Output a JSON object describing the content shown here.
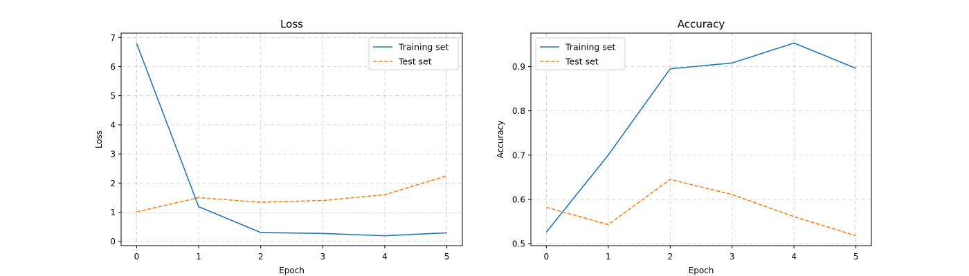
{
  "chart_data": [
    {
      "type": "line",
      "title": "Loss",
      "xlabel": "Epoch",
      "ylabel": "Loss",
      "x": [
        0,
        1,
        2,
        3,
        4,
        5
      ],
      "xlim": [
        -0.25,
        5.25
      ],
      "ylim": [
        -0.15,
        7.15
      ],
      "yticks": [
        0,
        1,
        2,
        3,
        4,
        5,
        6,
        7
      ],
      "ytick_labels": [
        "0",
        "1",
        "2",
        "3",
        "4",
        "5",
        "6",
        "7"
      ],
      "xticks": [
        0,
        1,
        2,
        3,
        4,
        5
      ],
      "xtick_labels": [
        "0",
        "1",
        "2",
        "3",
        "4",
        "5"
      ],
      "grid": true,
      "legend_position": "top-right",
      "series": [
        {
          "name": "Training set",
          "values": [
            6.8,
            1.19,
            0.3,
            0.27,
            0.19,
            0.29
          ],
          "color": "#1f77b4",
          "style": "solid"
        },
        {
          "name": "Test set",
          "values": [
            1.01,
            1.5,
            1.34,
            1.4,
            1.6,
            2.25
          ],
          "color": "#ff7f0e",
          "style": "dashed"
        }
      ]
    },
    {
      "type": "line",
      "title": "Accuracy",
      "xlabel": "Epoch",
      "ylabel": "Accuracy",
      "x": [
        0,
        1,
        2,
        3,
        4,
        5
      ],
      "xlim": [
        -0.25,
        5.25
      ],
      "ylim": [
        0.4955,
        0.9755
      ],
      "yticks": [
        0.5,
        0.6,
        0.7,
        0.8,
        0.9
      ],
      "ytick_labels": [
        "0.5",
        "0.6",
        "0.7",
        "0.8",
        "0.9"
      ],
      "xticks": [
        0,
        1,
        2,
        3,
        4,
        5
      ],
      "xtick_labels": [
        "0",
        "1",
        "2",
        "3",
        "4",
        "5"
      ],
      "grid": true,
      "legend_position": "top-left",
      "series": [
        {
          "name": "Training set",
          "values": [
            0.526,
            0.7,
            0.895,
            0.908,
            0.953,
            0.896
          ],
          "color": "#1f77b4",
          "style": "solid"
        },
        {
          "name": "Test set",
          "values": [
            0.582,
            0.543,
            0.645,
            0.611,
            0.561,
            0.518
          ],
          "color": "#ff7f0e",
          "style": "dashed"
        }
      ]
    }
  ]
}
